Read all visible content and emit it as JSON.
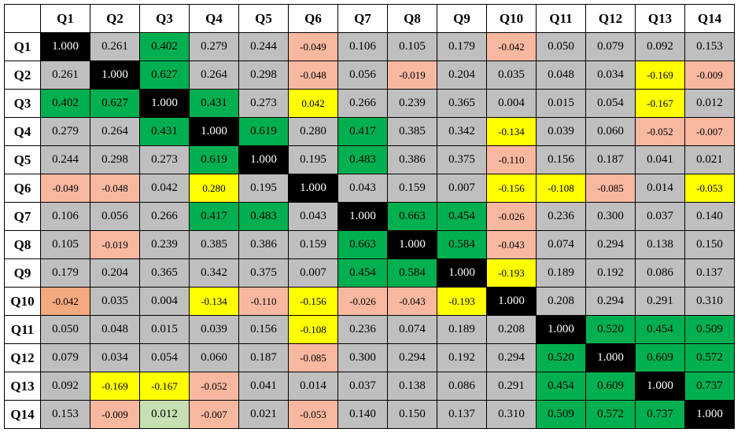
{
  "chart_data": {
    "type": "heatmap",
    "title": "",
    "labels": [
      "Q1",
      "Q2",
      "Q3",
      "Q4",
      "Q5",
      "Q6",
      "Q7",
      "Q8",
      "Q9",
      "Q10",
      "Q11",
      "Q12",
      "Q13",
      "Q14"
    ],
    "values": [
      [
        "1.000",
        "0.261",
        "0.402",
        "0.279",
        "0.244",
        "-0.049",
        "0.106",
        "0.105",
        "0.179",
        "-0.042",
        "0.050",
        "0.079",
        "0.092",
        "0.153"
      ],
      [
        "0.261",
        "1.000",
        "0.627",
        "0.264",
        "0.298",
        "-0.048",
        "0.056",
        "-0.019",
        "0.204",
        "0.035",
        "0.048",
        "0.034",
        "-0.169",
        "-0.009"
      ],
      [
        "0.402",
        "0.627",
        "1.000",
        "0.431",
        "0.273",
        "0.042",
        "0.266",
        "0.239",
        "0.365",
        "0.004",
        "0.015",
        "0.054",
        "-0.167",
        "0.012"
      ],
      [
        "0.279",
        "0.264",
        "0.431",
        "1.000",
        "0.619",
        "0.280",
        "0.417",
        "0.385",
        "0.342",
        "-0.134",
        "0.039",
        "0.060",
        "-0.052",
        "-0.007"
      ],
      [
        "0.244",
        "0.298",
        "0.273",
        "0.619",
        "1.000",
        "0.195",
        "0.483",
        "0.386",
        "0.375",
        "-0.110",
        "0.156",
        "0.187",
        "0.041",
        "0.021"
      ],
      [
        "-0.049",
        "-0.048",
        "0.042",
        "0.280",
        "0.195",
        "1.000",
        "0.043",
        "0.159",
        "0.007",
        "-0.156",
        "-0.108",
        "-0.085",
        "0.014",
        "-0.053"
      ],
      [
        "0.106",
        "0.056",
        "0.266",
        "0.417",
        "0.483",
        "0.043",
        "1.000",
        "0.663",
        "0.454",
        "-0.026",
        "0.236",
        "0.300",
        "0.037",
        "0.140"
      ],
      [
        "0.105",
        "-0.019",
        "0.239",
        "0.385",
        "0.386",
        "0.159",
        "0.663",
        "1.000",
        "0.584",
        "-0.043",
        "0.074",
        "0.294",
        "0.138",
        "0.150"
      ],
      [
        "0.179",
        "0.204",
        "0.365",
        "0.342",
        "0.375",
        "0.007",
        "0.454",
        "0.584",
        "1.000",
        "-0.193",
        "0.189",
        "0.192",
        "0.086",
        "0.137"
      ],
      [
        "-0.042",
        "0.035",
        "0.004",
        "-0.134",
        "-0.110",
        "-0.156",
        "-0.026",
        "-0.043",
        "-0.193",
        "1.000",
        "0.208",
        "0.294",
        "0.291",
        "0.310"
      ],
      [
        "0.050",
        "0.048",
        "0.015",
        "0.039",
        "0.156",
        "-0.108",
        "0.236",
        "0.074",
        "0.189",
        "0.208",
        "1.000",
        "0.520",
        "0.454",
        "0.509"
      ],
      [
        "0.079",
        "0.034",
        "0.054",
        "0.060",
        "0.187",
        "-0.085",
        "0.300",
        "0.294",
        "0.192",
        "0.294",
        "0.520",
        "1.000",
        "0.609",
        "0.572"
      ],
      [
        "0.092",
        "-0.169",
        "-0.167",
        "-0.052",
        "0.041",
        "0.014",
        "0.037",
        "0.138",
        "0.086",
        "0.291",
        "0.454",
        "0.609",
        "1.000",
        "0.737"
      ],
      [
        "0.153",
        "-0.009",
        "0.012",
        "-0.007",
        "0.021",
        "-0.053",
        "0.140",
        "0.150",
        "0.137",
        "0.310",
        "0.509",
        "0.572",
        "0.737",
        "1.000"
      ]
    ],
    "cell_colors": [
      [
        "K",
        "G",
        "N",
        "G",
        "G",
        "S",
        "G",
        "G",
        "G",
        "S",
        "G",
        "G",
        "G",
        "G"
      ],
      [
        "G",
        "K",
        "N",
        "G",
        "G",
        "S",
        "G",
        "S",
        "G",
        "G",
        "G",
        "G",
        "Y",
        "S"
      ],
      [
        "N",
        "N",
        "K",
        "N",
        "G",
        "Y",
        "G",
        "G",
        "G",
        "G",
        "G",
        "G",
        "Y",
        "G"
      ],
      [
        "G",
        "G",
        "N",
        "K",
        "N",
        "G",
        "N",
        "G",
        "G",
        "Y",
        "G",
        "G",
        "S",
        "S"
      ],
      [
        "G",
        "G",
        "G",
        "N",
        "K",
        "G",
        "N",
        "G",
        "G",
        "S",
        "G",
        "G",
        "G",
        "G"
      ],
      [
        "S",
        "S",
        "G",
        "Y",
        "G",
        "K",
        "G",
        "G",
        "G",
        "Y",
        "Y",
        "S",
        "G",
        "Y"
      ],
      [
        "G",
        "G",
        "G",
        "N",
        "N",
        "G",
        "K",
        "N",
        "N",
        "S",
        "G",
        "G",
        "G",
        "G"
      ],
      [
        "G",
        "S",
        "G",
        "G",
        "G",
        "G",
        "N",
        "K",
        "N",
        "S",
        "G",
        "G",
        "G",
        "G"
      ],
      [
        "G",
        "G",
        "G",
        "G",
        "G",
        "G",
        "N",
        "N",
        "K",
        "Y",
        "G",
        "G",
        "G",
        "G"
      ],
      [
        "O",
        "G",
        "G",
        "Y",
        "S",
        "Y",
        "S",
        "S",
        "Y",
        "K",
        "G",
        "G",
        "G",
        "G"
      ],
      [
        "G",
        "G",
        "G",
        "G",
        "G",
        "Y",
        "G",
        "G",
        "G",
        "G",
        "K",
        "N",
        "N",
        "N"
      ],
      [
        "G",
        "G",
        "G",
        "G",
        "G",
        "S",
        "G",
        "G",
        "G",
        "G",
        "N",
        "K",
        "N",
        "N"
      ],
      [
        "G",
        "Y",
        "Y",
        "S",
        "G",
        "G",
        "G",
        "G",
        "G",
        "G",
        "N",
        "N",
        "K",
        "N"
      ],
      [
        "G",
        "S",
        "L",
        "S",
        "G",
        "S",
        "G",
        "G",
        "G",
        "G",
        "N",
        "N",
        "N",
        "K"
      ]
    ],
    "palette": {
      "K": {
        "bg": "#000000",
        "fg": "#ffffff"
      },
      "G": {
        "bg": "#bfbfbf",
        "fg": "#000000"
      },
      "N": {
        "bg": "#00b050",
        "fg": "#000000"
      },
      "Y": {
        "bg": "#ffff00",
        "fg": "#000000"
      },
      "S": {
        "bg": "#f8b8a0",
        "fg": "#000000"
      },
      "O": {
        "bg": "#f4a97e",
        "fg": "#000000"
      },
      "L": {
        "bg": "#c6e0b4",
        "fg": "#000000"
      }
    },
    "small_text_fg": [
      "S",
      "O",
      "Y"
    ]
  }
}
